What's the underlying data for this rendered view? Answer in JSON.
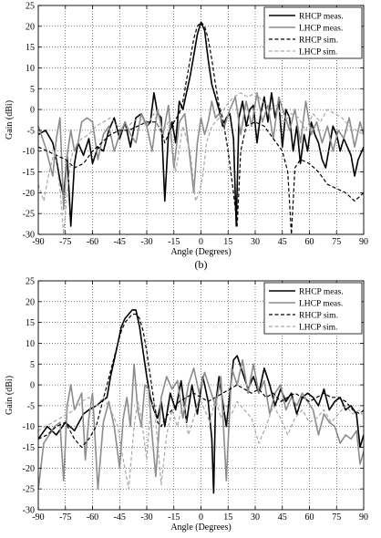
{
  "chart_data": [
    {
      "type": "line",
      "panel_label": "(b)",
      "xlabel": "Angle (Degrees)",
      "ylabel": "Gain (dBi)",
      "xlim": [
        -90,
        90
      ],
      "ylim": [
        -30,
        25
      ],
      "xticks": [
        -90,
        -75,
        -60,
        -45,
        -30,
        -15,
        0,
        15,
        30,
        45,
        60,
        75,
        90
      ],
      "yticks": [
        -30,
        -25,
        -20,
        -15,
        -10,
        -5,
        0,
        5,
        10,
        15,
        20,
        25
      ],
      "grid": "on",
      "legend_position": "top-right",
      "series": [
        {
          "name": "RHCP meas.",
          "style": "solid",
          "color": "#000000",
          "width": 1.6,
          "x": [
            -90,
            -86,
            -82,
            -80,
            -78,
            -76,
            -74,
            -72,
            -70,
            -68,
            -65,
            -62,
            -60,
            -57,
            -54,
            -51,
            -48,
            -45,
            -42,
            -39,
            -36,
            -33,
            -30,
            -28,
            -26,
            -24,
            -22,
            -20,
            -18,
            -16,
            -14,
            -12,
            -10,
            -8,
            -6,
            -4,
            -2,
            0,
            2,
            4,
            6,
            8,
            10,
            12,
            14,
            16,
            18,
            19.5,
            21,
            23,
            25,
            27,
            29,
            31,
            33,
            35,
            37,
            39,
            41,
            43,
            45,
            47,
            49,
            51,
            53,
            55,
            57,
            59,
            61,
            63,
            65,
            67,
            69,
            71,
            73,
            75,
            77,
            79,
            81,
            83,
            85,
            87,
            90
          ],
          "y": [
            -6,
            -5,
            -8,
            -12,
            -17,
            -21,
            -11,
            -28,
            -13,
            -8,
            -11,
            -7,
            -13,
            -9,
            -10,
            -5,
            -2,
            -7,
            -3,
            -9,
            -2,
            -1,
            -4,
            -3,
            4,
            -1,
            -2,
            -22,
            -6,
            -3,
            -8,
            2,
            0,
            4,
            8,
            13,
            18,
            21,
            19,
            12,
            6,
            3,
            0,
            -4,
            -2,
            -1,
            -7,
            -28,
            -2,
            2,
            -4,
            0,
            1,
            -8,
            -1,
            3,
            -3,
            4,
            -2,
            2,
            -9,
            0,
            -2,
            -10,
            -4,
            -13,
            -6,
            -10,
            -3,
            -6,
            -8,
            -12,
            -14,
            -9,
            -4,
            -6,
            -10,
            -7,
            -9,
            -11,
            -16,
            -12,
            -9
          ]
        },
        {
          "name": "LHCP meas.",
          "style": "solid",
          "color": "#8c8c8c",
          "width": 1.6,
          "x": [
            -90,
            -86,
            -82,
            -80,
            -78,
            -76,
            -74,
            -72,
            -70,
            -68,
            -66,
            -63,
            -60,
            -57,
            -54,
            -51,
            -48,
            -45,
            -42,
            -39,
            -36,
            -33,
            -30,
            -27,
            -24,
            -21,
            -18,
            -15,
            -12,
            -9,
            -6,
            -4,
            -2,
            0,
            2,
            4,
            6,
            8,
            10,
            13,
            16,
            19,
            22,
            25,
            28,
            31,
            34,
            37,
            40,
            43,
            46,
            49,
            52,
            55,
            58,
            61,
            64,
            67,
            70,
            73,
            76,
            79,
            82,
            85,
            88,
            90
          ],
          "y": [
            -4,
            -9,
            -16,
            -7,
            -2,
            -24,
            -11,
            -5,
            -10,
            -8,
            -3,
            -2,
            -3,
            -12,
            -6,
            -4,
            -10,
            -6,
            -3,
            -6,
            -8,
            -1,
            -4,
            -10,
            0,
            -6,
            1,
            -14,
            -3,
            -1,
            -12,
            -20,
            -8,
            -2,
            -6,
            -3,
            2,
            -2,
            -1,
            -4,
            0,
            3,
            -6,
            2,
            -4,
            4,
            -3,
            1,
            -7,
            3,
            -1,
            -5,
            0,
            -8,
            2,
            -6,
            -3,
            -8,
            -4,
            -10,
            -5,
            -7,
            -2,
            -9,
            -3,
            -6
          ]
        },
        {
          "name": "RHCP sim.",
          "style": "dashed",
          "color": "#000000",
          "width": 1.2,
          "x": [
            -90,
            -85,
            -80,
            -75,
            -70,
            -65,
            -60,
            -55,
            -50,
            -45,
            -40,
            -35,
            -30,
            -25,
            -22,
            -20,
            -18,
            -15,
            -12,
            -10,
            -8,
            -6,
            -4,
            -2,
            0,
            2,
            4,
            6,
            8,
            10,
            12,
            15,
            18,
            20,
            22,
            25,
            30,
            35,
            40,
            45,
            48,
            50,
            52,
            55,
            60,
            65,
            70,
            75,
            80,
            85,
            90
          ],
          "y": [
            -9,
            -10,
            -11,
            -12,
            -14,
            -13,
            -10,
            -8,
            -6,
            -5,
            -5,
            -4,
            -3,
            -3,
            -5,
            -8,
            -6,
            -3,
            -1,
            2,
            7,
            12,
            17,
            20,
            21,
            20,
            17,
            12,
            6,
            1,
            -2,
            -10,
            -20,
            -28,
            -10,
            -4,
            -3,
            -4,
            -7,
            -10,
            -15,
            -30,
            -14,
            -12,
            -13,
            -15,
            -18,
            -19,
            -20,
            -22,
            -20
          ]
        },
        {
          "name": "LHCP sim.",
          "style": "dashed",
          "color": "#a8a8a8",
          "width": 1.2,
          "x": [
            -90,
            -87,
            -84,
            -81,
            -78,
            -76,
            -74,
            -72,
            -70,
            -66,
            -62,
            -58,
            -54,
            -50,
            -46,
            -42,
            -38,
            -34,
            -30,
            -26,
            -22,
            -18,
            -14,
            -10,
            -6,
            -3,
            -1,
            1,
            3,
            6,
            10,
            14,
            18,
            22,
            26,
            30,
            34,
            38,
            42,
            46,
            50,
            54,
            58,
            62,
            66,
            70,
            74,
            78,
            82,
            86,
            90
          ],
          "y": [
            -18,
            -22,
            -15,
            -10,
            -19,
            -30,
            -20,
            -12,
            -9,
            -7,
            -6,
            -4,
            -3,
            -2,
            -4,
            -5,
            -3,
            -2,
            -4,
            -1,
            -6,
            -3,
            -15,
            -4,
            -10,
            -22,
            -20,
            -16,
            -8,
            -4,
            -2,
            1,
            3,
            4,
            3,
            4,
            2,
            0,
            1,
            -3,
            -1,
            -2,
            -5,
            -1,
            -3,
            0,
            -1,
            -2,
            -4,
            -5,
            -6
          ]
        }
      ]
    },
    {
      "type": "line",
      "panel_label": "",
      "xlabel": "Angle (Degrees)",
      "ylabel": "Gain (dBi)",
      "xlim": [
        -90,
        90
      ],
      "ylim": [
        -30,
        25
      ],
      "xticks": [
        -90,
        -75,
        -60,
        -45,
        -30,
        -15,
        0,
        15,
        30,
        45,
        60,
        75,
        90
      ],
      "yticks": [
        -30,
        -25,
        -20,
        -15,
        -10,
        -5,
        0,
        5,
        10,
        15,
        20,
        25
      ],
      "grid": "on",
      "legend_position": "top-right",
      "series": [
        {
          "name": "RHCP meas.",
          "style": "solid",
          "color": "#000000",
          "width": 1.6,
          "x": [
            -90,
            -85,
            -80,
            -75,
            -70,
            -65,
            -62,
            -58,
            -55,
            -52,
            -50,
            -48,
            -46,
            -44,
            -42,
            -40,
            -38,
            -36,
            -34,
            -32,
            -30,
            -28,
            -26,
            -24,
            -22,
            -20,
            -17,
            -14,
            -11,
            -8,
            -5,
            -2,
            1,
            4,
            6,
            7,
            8,
            10,
            12,
            14,
            16,
            18,
            20,
            23,
            26,
            29,
            32,
            35,
            38,
            41,
            44,
            47,
            50,
            53,
            56,
            59,
            62,
            65,
            68,
            71,
            74,
            77,
            80,
            83,
            86,
            88,
            90
          ],
          "y": [
            -13,
            -10,
            -12,
            -9,
            -11,
            -7,
            -6,
            -5,
            -4,
            -3,
            2,
            6,
            10,
            14,
            16,
            17,
            18,
            18,
            14,
            8,
            2,
            -3,
            -6,
            -8,
            -4,
            -10,
            -2,
            -6,
            1,
            -9,
            0,
            -7,
            2,
            -4,
            -13,
            -26,
            -5,
            2,
            -4,
            -10,
            -2,
            6,
            7,
            3,
            -1,
            2,
            -2,
            4,
            0,
            -5,
            -1,
            -4,
            -2,
            -7,
            -3,
            -2,
            -3,
            -5,
            -1,
            -6,
            -4,
            -3,
            -6,
            -5,
            -7,
            -15,
            -12
          ]
        },
        {
          "name": "LHCP meas.",
          "style": "solid",
          "color": "#8c8c8c",
          "width": 1.6,
          "x": [
            -90,
            -87,
            -84,
            -81,
            -78,
            -76,
            -74,
            -72,
            -70,
            -68,
            -66,
            -64,
            -62,
            -60,
            -57,
            -54,
            -51,
            -48,
            -45,
            -43,
            -41,
            -39,
            -37,
            -35,
            -33,
            -31,
            -29,
            -27,
            -25,
            -22,
            -19,
            -16,
            -13,
            -10,
            -7,
            -4,
            -1,
            2,
            5,
            8,
            11,
            14,
            17,
            20,
            23,
            26,
            29,
            32,
            35,
            38,
            41,
            44,
            47,
            50,
            53,
            56,
            59,
            62,
            65,
            68,
            71,
            74,
            77,
            80,
            83,
            86,
            88,
            90
          ],
          "y": [
            -25,
            -14,
            -12,
            -10,
            -9,
            -23,
            -5,
            0,
            -6,
            -4,
            -2,
            -18,
            -8,
            -2,
            -25,
            -9,
            -4,
            -10,
            -20,
            -8,
            -3,
            -10,
            5,
            -6,
            -10,
            0,
            -1,
            -12,
            -22,
            -3,
            2,
            -1,
            1,
            -8,
            0,
            4,
            -2,
            3,
            -1,
            -5,
            2,
            -23,
            4,
            0,
            6,
            -2,
            5,
            -2,
            1,
            -7,
            -2,
            0,
            -6,
            -3,
            -5,
            -2,
            -4,
            -6,
            -12,
            -7,
            -9,
            -10,
            -14,
            -12,
            -13,
            -11,
            -19,
            -16
          ]
        },
        {
          "name": "RHCP sim.",
          "style": "dashed",
          "color": "#000000",
          "width": 1.2,
          "x": [
            -90,
            -85,
            -80,
            -75,
            -70,
            -66,
            -62,
            -58,
            -55,
            -52,
            -49,
            -46,
            -44,
            -42,
            -40,
            -38,
            -36,
            -34,
            -32,
            -30,
            -28,
            -26,
            -24,
            -22,
            -20,
            -16,
            -12,
            -8,
            -4,
            0,
            4,
            8,
            12,
            16,
            20,
            24,
            28,
            32,
            36,
            40,
            44,
            48,
            52,
            56,
            60,
            64,
            68,
            72,
            76,
            80,
            84,
            88,
            90
          ],
          "y": [
            -13,
            -12,
            -10,
            -9,
            -13,
            -15,
            -13,
            -10,
            -5,
            0,
            5,
            10,
            13,
            15,
            16,
            17,
            17,
            16,
            13,
            8,
            2,
            -4,
            -9,
            -10,
            -8,
            -6,
            -4,
            -3,
            -2,
            -3,
            -4,
            -3,
            -2,
            -1,
            0,
            -1,
            -2,
            -1,
            -3,
            -2,
            -4,
            -3,
            -2,
            -3,
            -4,
            -3,
            -2,
            -3,
            -3,
            -4,
            -6,
            -7,
            -6
          ]
        },
        {
          "name": "LHCP sim.",
          "style": "dashed",
          "color": "#a8a8a8",
          "width": 1.2,
          "x": [
            -90,
            -86,
            -82,
            -78,
            -74,
            -70,
            -66,
            -62,
            -58,
            -54,
            -50,
            -46,
            -43,
            -40,
            -37,
            -35,
            -33,
            -30,
            -28,
            -26,
            -24,
            -22,
            -19,
            -16,
            -13,
            -10,
            -7,
            -4,
            -1,
            2,
            5,
            8,
            11,
            14,
            17,
            20,
            24,
            28,
            32,
            36,
            40,
            44,
            48,
            52,
            56,
            60,
            64,
            68,
            72,
            76,
            80,
            84,
            88,
            90
          ],
          "y": [
            -11,
            -10,
            -9,
            -8,
            -7,
            -6,
            -4,
            -3,
            -5,
            -3,
            -6,
            -10,
            -18,
            -25,
            -10,
            -4,
            -8,
            -18,
            -6,
            -4,
            -14,
            -24,
            -12,
            -6,
            -10,
            -4,
            -12,
            -8,
            -3,
            -6,
            -9,
            -3,
            -8,
            -5,
            -7,
            -4,
            -6,
            -8,
            -14,
            -10,
            -5,
            -8,
            -12,
            -8,
            -6,
            -9,
            -8,
            -6,
            -9,
            -7,
            -5,
            -7,
            -6,
            -8
          ]
        }
      ]
    }
  ]
}
